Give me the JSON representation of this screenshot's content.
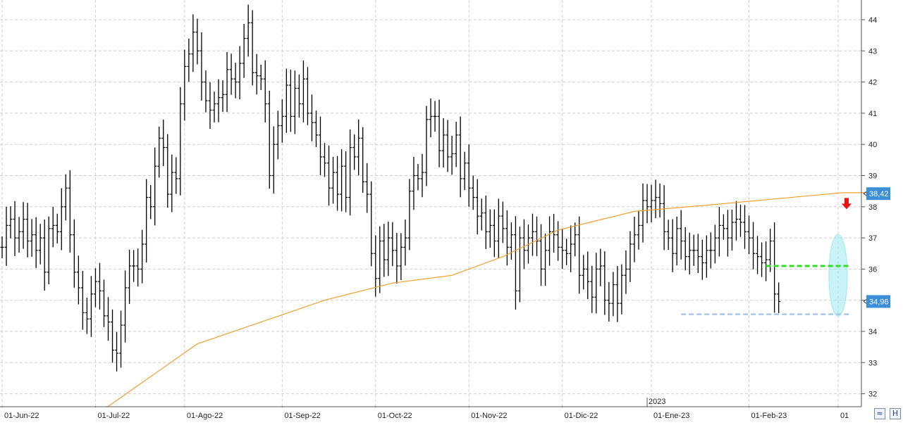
{
  "chart_data": {
    "type": "ohlc-bar",
    "title": "",
    "xlabel": "",
    "ylabel": "",
    "ylim": [
      31.6,
      44.6
    ],
    "y_ticks": [
      32,
      33,
      34,
      35,
      36,
      37,
      38,
      39,
      40,
      41,
      42,
      43,
      44
    ],
    "x_ticks": [
      {
        "i": 0,
        "label": "01-Jun-22"
      },
      {
        "i": 22,
        "label": "01-Jul-22"
      },
      {
        "i": 43,
        "label": "01-Ago-22"
      },
      {
        "i": 66,
        "label": "01-Sep-22"
      },
      {
        "i": 88,
        "label": "01-Oct-22"
      },
      {
        "i": 110,
        "label": "01-Nov-22"
      },
      {
        "i": 132,
        "label": "01-Dic-22"
      },
      {
        "i": 153,
        "label": "01-Ene-23"
      },
      {
        "i": 176,
        "label": "01-Feb-23"
      },
      {
        "i": 197,
        "label": "01"
      }
    ],
    "year_marker": {
      "i": 152,
      "label": "2023"
    },
    "grid": true,
    "colors": {
      "bars": "#000000",
      "moving_average": "#f0a030",
      "support": "#33dd22",
      "low_line": "#a8c8e8",
      "highlight": "#9eeaf0",
      "arrow": "#ee1111",
      "price_tag": "#3b8ed8",
      "axis": "#555555",
      "grid": "#cfcfcf"
    },
    "ohlc_close": [
      36.7,
      37.4,
      37.6,
      37.0,
      37.2,
      37.6,
      36.9,
      37.1,
      36.6,
      37.0,
      35.9,
      37.3,
      37.4,
      37.2,
      38.0,
      38.6,
      37.1,
      35.9,
      35.4,
      34.6,
      34.4,
      35.2,
      35.6,
      35.3,
      34.5,
      34.3,
      33.4,
      33.3,
      34.2,
      35.4,
      36.1,
      36.1,
      36.0,
      36.8,
      38.3,
      38.0,
      39.3,
      40.2,
      39.9,
      38.4,
      39.1,
      38.9,
      41.3,
      42.5,
      42.9,
      43.6,
      43.0,
      42.0,
      41.4,
      41.1,
      41.3,
      41.5,
      41.6,
      42.4,
      42.1,
      42.0,
      42.6,
      43.4,
      43.9,
      42.3,
      42.2,
      42.1,
      41.3,
      39.0,
      40.0,
      40.6,
      40.9,
      41.9,
      40.9,
      41.8,
      41.3,
      42.1,
      41.0,
      40.7,
      40.3,
      39.6,
      39.4,
      38.6,
      39.1,
      38.4,
      39.3,
      38.3,
      39.9,
      39.6,
      40.2,
      38.8,
      38.4,
      36.5,
      35.7,
      36.9,
      36.3,
      37.0,
      36.6,
      36.1,
      36.7,
      37.0,
      38.5,
      39.0,
      38.9,
      39.1,
      40.8,
      40.9,
      40.9,
      39.8,
      40.3,
      39.6,
      39.7,
      40.3,
      38.9,
      39.4,
      38.6,
      38.3,
      37.7,
      37.8,
      37.2,
      37.4,
      36.9,
      37.7,
      37.3,
      36.7,
      37.1,
      35.3,
      37.0,
      36.6,
      37.0,
      37.2,
      36.9,
      36.0,
      36.6,
      37.2,
      37.1,
      36.7,
      36.6,
      36.5,
      36.8,
      37.1,
      35.8,
      36.0,
      35.6,
      35.1,
      36.0,
      36.1,
      35.0,
      34.9,
      35.5,
      34.9,
      35.8,
      36.0,
      36.8,
      37.1,
      37.4,
      38.2,
      38.0,
      38.2,
      38.3,
      38.1,
      37.2,
      37.0,
      36.5,
      37.3,
      36.9,
      36.4,
      36.6,
      36.6,
      36.4,
      36.2,
      36.6,
      36.6,
      37.0,
      37.4,
      37.3,
      37.0,
      37.5,
      37.6,
      37.5,
      37.2,
      37.0,
      36.5,
      36.4,
      36.2,
      36.3,
      36.9,
      35.2,
      34.96
    ],
    "moving_average": {
      "start": 24,
      "end": 204,
      "v_start": 31.5,
      "v_end": 38.45,
      "points": [
        [
          31.5,
          24
        ],
        [
          33.6,
          46
        ],
        [
          35.0,
          76
        ],
        [
          35.55,
          92
        ],
        [
          35.8,
          106
        ],
        [
          36.4,
          118
        ],
        [
          37.25,
          131
        ],
        [
          37.85,
          149
        ],
        [
          38.05,
          166
        ],
        [
          38.45,
          198
        ],
        [
          38.45,
          204
        ]
      ]
    },
    "annotations": {
      "support_level": 36.1,
      "recent_low": 34.55,
      "last_price": "34,96",
      "ma_value": "38,42"
    }
  }
}
